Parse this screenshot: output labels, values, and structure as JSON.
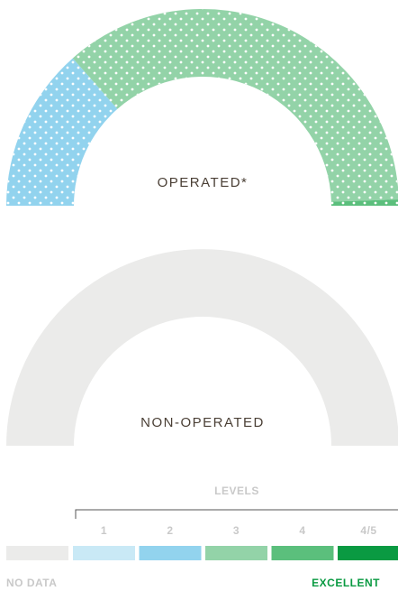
{
  "chart_data": [
    {
      "type": "gauge",
      "title": "OPERATED*",
      "values": [
        27,
        72,
        1
      ],
      "colors": [
        "#92d3ee",
        "#93d3a8",
        "#5bbf7c"
      ],
      "pattern": "dots"
    },
    {
      "type": "gauge",
      "title": "NON-OPERATED",
      "values": [
        100
      ],
      "colors": [
        "#ebebea"
      ],
      "pattern": "none"
    }
  ],
  "legend": {
    "title": "LEVELS",
    "items": [
      {
        "label": "1",
        "color": "#c9e9f6"
      },
      {
        "label": "2",
        "color": "#92d3ee"
      },
      {
        "label": "3",
        "color": "#93d3a8"
      },
      {
        "label": "4",
        "color": "#5bbf7c"
      },
      {
        "label": "4/5",
        "color": "#0a9a42"
      }
    ],
    "no_data": {
      "label": "NO DATA",
      "color": "#ebebea"
    },
    "end_label": "EXCELLENT"
  }
}
